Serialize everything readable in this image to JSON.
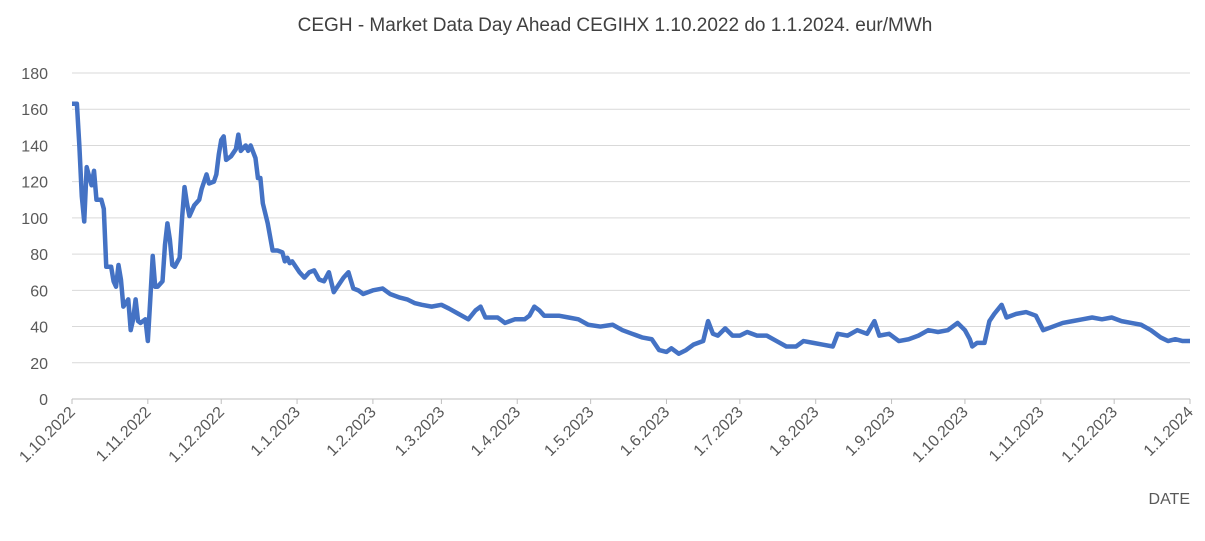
{
  "chart_data": {
    "type": "line",
    "title": "CEGH - Market Data Day Ahead CEGIHX 1.10.2022 do 1.1.2024.  eur/MWh",
    "x_label": "DATE",
    "x": [
      "2022-10-01",
      "2022-10-03",
      "2022-10-04",
      "2022-10-05",
      "2022-10-06",
      "2022-10-07",
      "2022-10-09",
      "2022-10-10",
      "2022-10-11",
      "2022-10-13",
      "2022-10-14",
      "2022-10-15",
      "2022-10-17",
      "2022-10-18",
      "2022-10-19",
      "2022-10-20",
      "2022-10-21",
      "2022-10-22",
      "2022-10-24",
      "2022-10-25",
      "2022-10-26",
      "2022-10-27",
      "2022-10-28",
      "2022-10-29",
      "2022-10-31",
      "2022-11-01",
      "2022-11-02",
      "2022-11-03",
      "2022-11-04",
      "2022-11-05",
      "2022-11-07",
      "2022-11-08",
      "2022-11-09",
      "2022-11-10",
      "2022-11-11",
      "2022-11-12",
      "2022-11-14",
      "2022-11-15",
      "2022-11-16",
      "2022-11-17",
      "2022-11-18",
      "2022-11-20",
      "2022-11-22",
      "2022-11-23",
      "2022-11-25",
      "2022-11-26",
      "2022-11-28",
      "2022-11-29",
      "2022-11-30",
      "2022-12-01",
      "2022-12-02",
      "2022-12-03",
      "2022-12-05",
      "2022-12-07",
      "2022-12-08",
      "2022-12-09",
      "2022-12-11",
      "2022-12-12",
      "2022-12-13",
      "2022-12-15",
      "2022-12-16",
      "2022-12-17",
      "2022-12-18",
      "2022-12-20",
      "2022-12-22",
      "2022-12-24",
      "2022-12-26",
      "2022-12-27",
      "2022-12-28",
      "2022-12-29",
      "2022-12-30",
      "2023-01-02",
      "2023-01-04",
      "2023-01-06",
      "2023-01-08",
      "2023-01-10",
      "2023-01-12",
      "2023-01-14",
      "2023-01-16",
      "2023-01-18",
      "2023-01-20",
      "2023-01-22",
      "2023-01-24",
      "2023-01-26",
      "2023-01-28",
      "2023-02-01",
      "2023-02-05",
      "2023-02-08",
      "2023-02-12",
      "2023-02-15",
      "2023-02-18",
      "2023-02-21",
      "2023-02-25",
      "2023-03-01",
      "2023-03-04",
      "2023-03-08",
      "2023-03-12",
      "2023-03-15",
      "2023-03-17",
      "2023-03-19",
      "2023-03-24",
      "2023-03-27",
      "2023-03-31",
      "2023-04-04",
      "2023-04-06",
      "2023-04-08",
      "2023-04-10",
      "2023-04-12",
      "2023-04-18",
      "2023-04-22",
      "2023-04-26",
      "2023-04-30",
      "2023-05-05",
      "2023-05-10",
      "2023-05-14",
      "2023-05-18",
      "2023-05-22",
      "2023-05-26",
      "2023-05-29",
      "2023-06-01",
      "2023-06-03",
      "2023-06-06",
      "2023-06-09",
      "2023-06-12",
      "2023-06-16",
      "2023-06-18",
      "2023-06-20",
      "2023-06-22",
      "2023-06-25",
      "2023-06-28",
      "2023-07-01",
      "2023-07-04",
      "2023-07-08",
      "2023-07-12",
      "2023-07-16",
      "2023-07-20",
      "2023-07-24",
      "2023-07-27",
      "2023-07-31",
      "2023-08-04",
      "2023-08-08",
      "2023-08-10",
      "2023-08-14",
      "2023-08-18",
      "2023-08-22",
      "2023-08-25",
      "2023-08-27",
      "2023-08-31",
      "2023-09-04",
      "2023-09-08",
      "2023-09-12",
      "2023-09-16",
      "2023-09-20",
      "2023-09-24",
      "2023-09-28",
      "2023-10-01",
      "2023-10-03",
      "2023-10-04",
      "2023-10-06",
      "2023-10-09",
      "2023-10-11",
      "2023-10-13",
      "2023-10-16",
      "2023-10-18",
      "2023-10-22",
      "2023-10-26",
      "2023-10-30",
      "2023-11-02",
      "2023-11-06",
      "2023-11-10",
      "2023-11-14",
      "2023-11-18",
      "2023-11-22",
      "2023-11-26",
      "2023-11-30",
      "2023-12-04",
      "2023-12-08",
      "2023-12-12",
      "2023-12-16",
      "2023-12-20",
      "2023-12-23",
      "2023-12-26",
      "2023-12-29",
      "2024-01-01"
    ],
    "series": [
      {
        "name": "CEGIHX",
        "color": "#4472c4",
        "values": [
          163,
          163,
          140,
          112,
          98,
          128,
          118,
          126,
          110,
          110,
          105,
          73,
          73,
          65,
          62,
          74,
          66,
          51,
          55,
          38,
          44,
          55,
          43,
          42,
          44,
          32,
          55,
          79,
          62,
          62,
          65,
          85,
          97,
          88,
          74,
          73,
          78,
          100,
          117,
          108,
          101,
          107,
          110,
          116,
          124,
          119,
          120,
          124,
          135,
          143,
          145,
          132,
          134,
          138,
          146,
          137,
          140,
          137,
          140,
          133,
          122,
          122,
          108,
          97,
          82,
          82,
          81,
          76,
          78,
          75,
          76,
          70,
          67,
          70,
          71,
          66,
          65,
          70,
          59,
          63,
          67,
          70,
          61,
          60,
          58,
          60,
          61,
          58,
          56,
          55,
          53,
          52,
          51,
          52,
          50,
          47,
          44,
          49,
          51,
          45,
          45,
          42,
          44,
          44,
          46,
          51,
          49,
          46,
          46,
          45,
          44,
          41,
          40,
          41,
          38,
          36,
          34,
          33,
          27,
          26,
          28,
          25,
          27,
          30,
          32,
          43,
          36,
          35,
          39,
          35,
          35,
          37,
          35,
          35,
          32,
          29,
          29,
          32,
          31,
          30,
          29,
          36,
          35,
          38,
          36,
          43,
          35,
          36,
          32,
          33,
          35,
          38,
          37,
          38,
          42,
          38,
          33,
          29,
          31,
          31,
          43,
          47,
          52,
          45,
          47,
          48,
          46,
          38,
          40,
          42,
          43,
          44,
          45,
          44,
          45,
          43,
          42,
          41,
          38,
          34,
          32,
          33,
          32,
          32
        ]
      }
    ],
    "xlim": [
      "2022-10-01",
      "2024-01-01"
    ],
    "xticks": [
      {
        "value": "2022-10-01",
        "label": "1.10.2022"
      },
      {
        "value": "2022-11-01",
        "label": "1.11.2022"
      },
      {
        "value": "2022-12-01",
        "label": "1.12.2022"
      },
      {
        "value": "2023-01-01",
        "label": "1.1.2023"
      },
      {
        "value": "2023-02-01",
        "label": "1.2.2023"
      },
      {
        "value": "2023-03-01",
        "label": "1.3.2023"
      },
      {
        "value": "2023-04-01",
        "label": "1.4.2023"
      },
      {
        "value": "2023-05-01",
        "label": "1.5.2023"
      },
      {
        "value": "2023-06-01",
        "label": "1.6.2023"
      },
      {
        "value": "2023-07-01",
        "label": "1.7.2023"
      },
      {
        "value": "2023-08-01",
        "label": "1.8.2023"
      },
      {
        "value": "2023-09-01",
        "label": "1.9.2023"
      },
      {
        "value": "2023-10-01",
        "label": "1.10.2023"
      },
      {
        "value": "2023-11-01",
        "label": "1.11.2023"
      },
      {
        "value": "2023-12-01",
        "label": "1.12.2023"
      },
      {
        "value": "2024-01-01",
        "label": "1.1.2024"
      }
    ],
    "ylim": [
      0,
      180
    ],
    "yticks": [
      0,
      20,
      40,
      60,
      80,
      100,
      120,
      140,
      160,
      180
    ],
    "grid": true
  }
}
